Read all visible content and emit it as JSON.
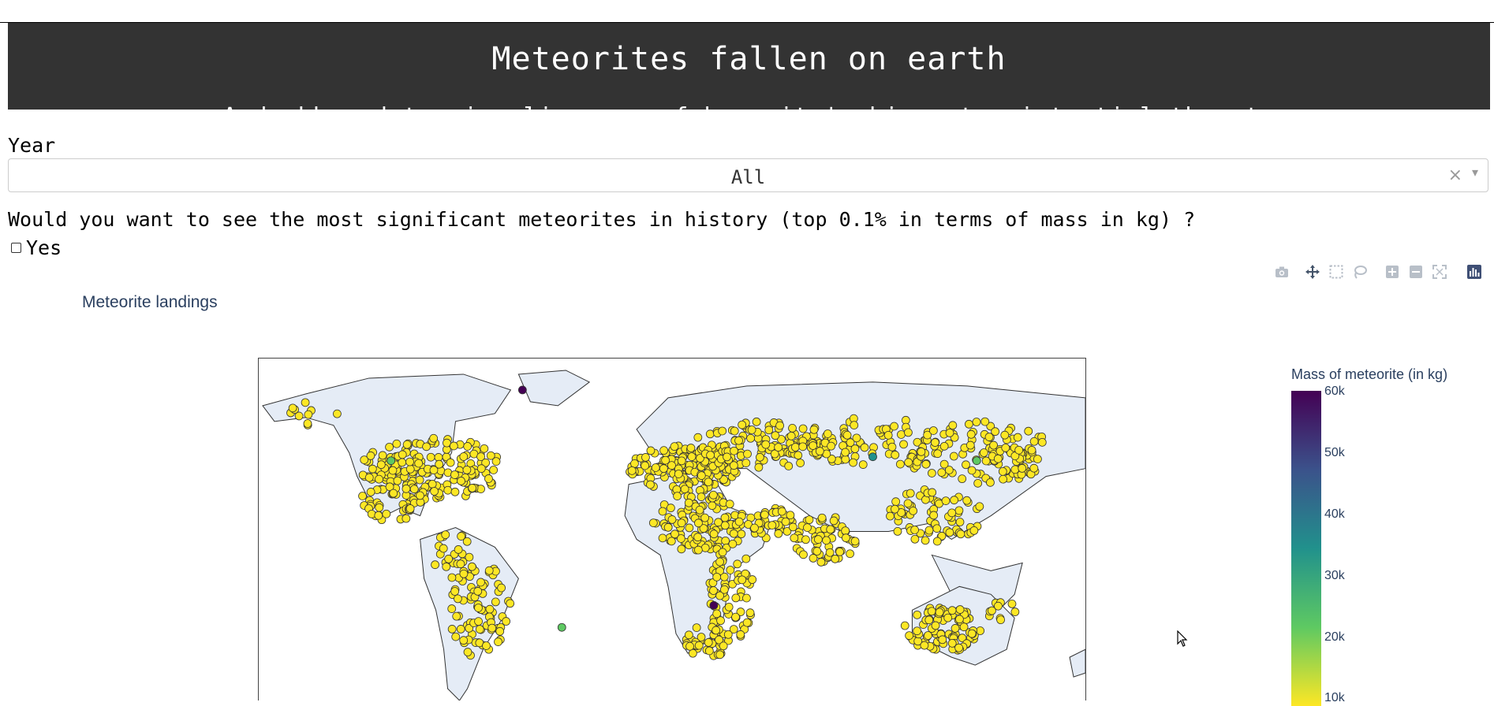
{
  "header": {
    "title": "Meteorites fallen on earth",
    "subtitle": "A dashboard to visualize one of humanity's biggest existential threats"
  },
  "filters": {
    "year_label": "Year",
    "year_value": "All",
    "clear_symbol": "×",
    "question": "Would you want to see the most significant meteorites in history (top 0.1% in terms of mass in kg) ?",
    "checkbox_label": "Yes",
    "checkbox_checked": false
  },
  "modebar": {
    "icons": [
      "camera-icon",
      "pan-icon",
      "box-select-icon",
      "lasso-icon",
      "zoom-in-icon",
      "zoom-out-icon",
      "reset-icon",
      "plotly-logo-icon"
    ]
  },
  "plot": {
    "title": "Meteorite landings",
    "land_color": "#e5ecf6",
    "marker_color": "#fde725",
    "colorbar": {
      "title": "Mass of meteorite (in kg)",
      "ticks": [
        "60k",
        "50k",
        "40k",
        "30k",
        "20k",
        "10k"
      ],
      "colors": [
        "#440154",
        "#3b528b",
        "#21918c",
        "#5ec962",
        "#fde725"
      ]
    }
  }
}
